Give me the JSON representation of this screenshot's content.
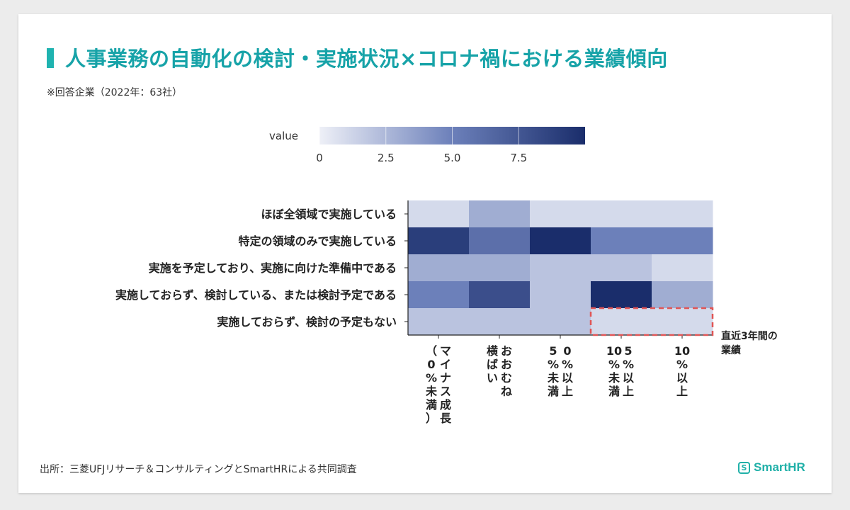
{
  "title": "人事業務の自動化の検討・実施状況×コロナ禍における業績傾向",
  "subtitle": "※回答企業（2022年：63社）",
  "source": "出所：三菱UFJリサーチ＆コンサルティングとSmartHRによる共同調査",
  "brand": {
    "name": "SmartHR",
    "color": "#20b0a8"
  },
  "colors": {
    "accent": "#17a3a8",
    "highlight_box": "#e05555",
    "scale_low": "#eef0f7",
    "scale_high": "#1a2d6b"
  },
  "chart_data": {
    "type": "heatmap",
    "colorbar": {
      "label": "value",
      "ticks": [
        "0",
        "2.5",
        "5.0",
        "7.5"
      ],
      "min": 0,
      "max": 10
    },
    "rows": [
      "ほぼ全領域で実施している",
      "特定の領域のみで実施している",
      "実施を予定しており、実施に向けた準備中である",
      "実施しておらず、検討している、または検討予定である",
      "実施しておらず、検討の予定もない"
    ],
    "columns": [
      "マイナス成長（0%未満）",
      "おおむね横ばい",
      "0%以上5%未満",
      "5%以上10%未満",
      "10%以上"
    ],
    "values": [
      [
        1,
        3,
        1,
        1,
        1
      ],
      [
        9,
        6,
        10,
        5,
        5
      ],
      [
        3,
        3,
        2,
        2,
        1
      ],
      [
        5,
        8,
        2,
        10,
        3
      ],
      [
        2,
        2,
        2,
        1,
        1
      ]
    ],
    "annotation": "直近3年間の業績",
    "highlight_cells": [
      [
        4,
        3
      ],
      [
        4,
        4
      ]
    ]
  }
}
